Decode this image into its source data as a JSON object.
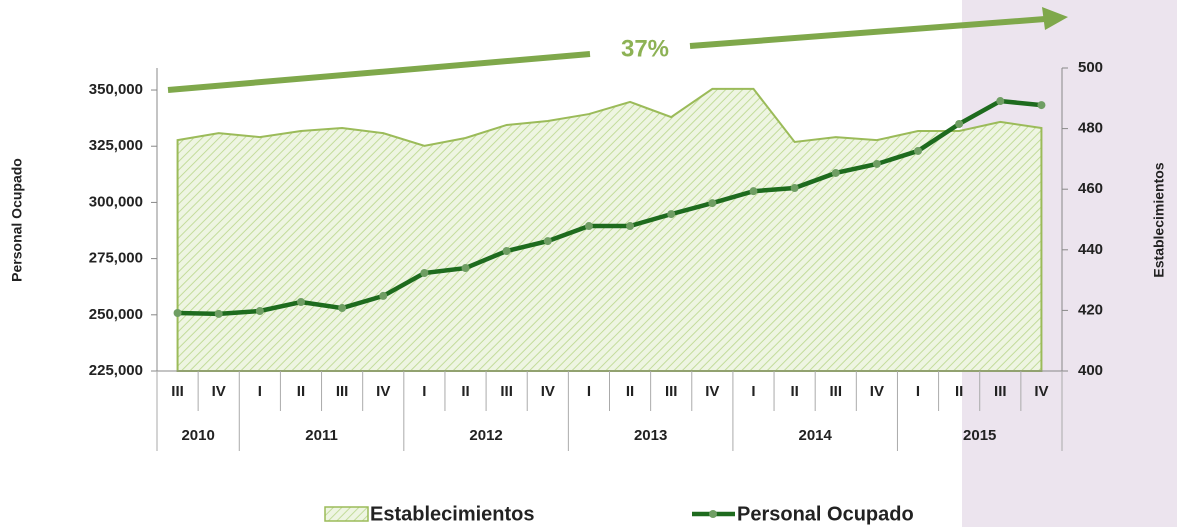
{
  "chart_data": {
    "type": "line",
    "categories": [
      "III",
      "IV",
      "I",
      "II",
      "III",
      "IV",
      "I",
      "II",
      "III",
      "IV",
      "I",
      "II",
      "III",
      "IV",
      "I",
      "II",
      "III",
      "IV",
      "I",
      "II",
      "III",
      "IV"
    ],
    "years": [
      "2010",
      "2011",
      "2012",
      "2013",
      "2014",
      "2015"
    ],
    "year_spans": [
      2,
      4,
      4,
      4,
      4,
      4
    ],
    "series": [
      {
        "name": "Establecimientos",
        "type": "area",
        "axis": "y2",
        "color": "#9bbb59",
        "values": [
          476.2,
          478.5,
          477.2,
          479.2,
          480.2,
          478.5,
          474.3,
          476.9,
          481.2,
          482.5,
          484.8,
          488.8,
          483.8,
          493.1,
          493.1,
          475.6,
          477.2,
          476.2,
          479.2,
          479.2,
          482.2,
          480.2
        ]
      },
      {
        "name": "Personal Ocupado",
        "type": "line",
        "axis": "y",
        "color": "#1e6b1e",
        "marker_color": "#6f9e63",
        "values": [
          250800,
          250400,
          251700,
          255700,
          253000,
          258400,
          268600,
          270800,
          278400,
          282800,
          289500,
          289500,
          294800,
          299700,
          305000,
          306400,
          313100,
          317100,
          322900,
          334900,
          345100,
          343300
        ]
      }
    ],
    "ylabel": "Personal Ocupado",
    "y2label": "Establecimientos",
    "ylim": [
      225000,
      359800
    ],
    "yticks": [
      {
        "value": 225000,
        "label": "225,000"
      },
      {
        "value": 250000,
        "label": "250,000"
      },
      {
        "value": 275000,
        "label": "275,000"
      },
      {
        "value": 300000,
        "label": "300,000"
      },
      {
        "value": 325000,
        "label": "325,000"
      },
      {
        "value": 350000,
        "label": "350,000"
      }
    ],
    "y2lim": [
      400,
      500
    ],
    "y2ticks": [
      400,
      420,
      440,
      460,
      480,
      500
    ],
    "annotation": "37%"
  }
}
